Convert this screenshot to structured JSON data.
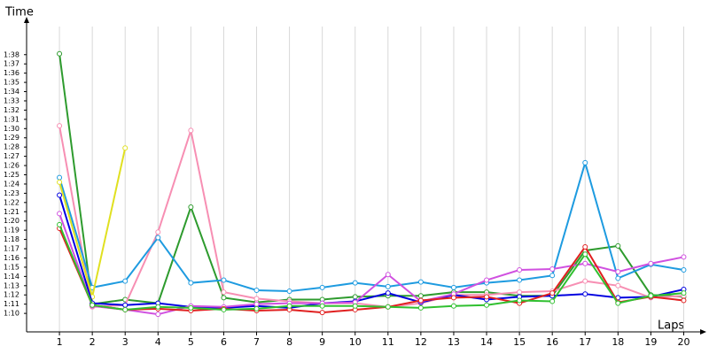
{
  "chart_data": {
    "type": "line",
    "x_label": "Laps",
    "y_label": "Time",
    "x": [
      1,
      2,
      3,
      4,
      5,
      6,
      7,
      8,
      9,
      10,
      11,
      12,
      13,
      14,
      15,
      16,
      17,
      18,
      19,
      20
    ],
    "xlim": [
      0,
      20.5
    ],
    "xticks": [
      1,
      2,
      3,
      4,
      5,
      6,
      7,
      8,
      9,
      10,
      11,
      12,
      13,
      14,
      15,
      16,
      17,
      18,
      19,
      20
    ],
    "ylim": [
      68,
      102
    ],
    "yticks": [
      {
        "value": 70,
        "label": "1:10"
      },
      {
        "value": 71,
        "label": "1:11"
      },
      {
        "value": 72,
        "label": "1:12"
      },
      {
        "value": 73,
        "label": "1:13"
      },
      {
        "value": 74,
        "label": "1:14"
      },
      {
        "value": 75,
        "label": "1:15"
      },
      {
        "value": 76,
        "label": "1:16"
      },
      {
        "value": 77,
        "label": "1:17"
      },
      {
        "value": 78,
        "label": "1:18"
      },
      {
        "value": 79,
        "label": "1:19"
      },
      {
        "value": 80,
        "label": "1:20"
      },
      {
        "value": 81,
        "label": "1:21"
      },
      {
        "value": 82,
        "label": "1:22"
      },
      {
        "value": 83,
        "label": "1:23"
      },
      {
        "value": 84,
        "label": "1:24"
      },
      {
        "value": 85,
        "label": "1:25"
      },
      {
        "value": 86,
        "label": "1:26"
      },
      {
        "value": 87,
        "label": "1:27"
      },
      {
        "value": 88,
        "label": "1:28"
      },
      {
        "value": 89,
        "label": "1:29"
      },
      {
        "value": 90,
        "label": "1:30"
      },
      {
        "value": 91,
        "label": "1:31"
      },
      {
        "value": 92,
        "label": "1:32"
      },
      {
        "value": 93,
        "label": "1:33"
      },
      {
        "value": 94,
        "label": "1:34"
      },
      {
        "value": 95,
        "label": "1:35"
      },
      {
        "value": 96,
        "label": "1:36"
      },
      {
        "value": 97,
        "label": "1:37"
      },
      {
        "value": 98,
        "label": "1:38"
      }
    ],
    "grid": true,
    "series": [
      {
        "color": "#2e9b2e",
        "values": [
          98.1,
          71,
          71.5,
          71.1,
          81.5,
          71.7,
          71.2,
          71.5,
          71.5,
          71.8,
          71.9,
          71.9,
          72.3,
          72.3,
          71.9,
          71.9,
          76.8,
          77.3,
          72,
          71.8
        ]
      },
      {
        "color": "#f78fb3",
        "values": [
          90.3,
          70.7,
          70.9,
          78.8,
          89.8,
          72.3,
          71.6,
          71.3,
          71.1,
          71.1,
          70.7,
          71.1,
          72,
          72,
          72.3,
          72.4,
          73.5,
          73,
          71.7,
          71.9
        ]
      },
      {
        "color": "#1e9be0",
        "values": [
          84.7,
          72.8,
          73.5,
          78.2,
          73.3,
          73.6,
          72.5,
          72.4,
          72.8,
          73.3,
          72.9,
          73.4,
          72.8,
          73.3,
          73.6,
          74.1,
          86.3,
          73.8,
          75.3,
          74.7
        ]
      },
      {
        "color": "#e0e020",
        "values": [
          84.2,
          71.8,
          87.9,
          null,
          null,
          null,
          null,
          null,
          null,
          null,
          null,
          null,
          null,
          null,
          null,
          null,
          null,
          null,
          null,
          null
        ]
      },
      {
        "color": "#0000e0",
        "values": [
          82.8,
          71.1,
          70.9,
          71.1,
          70.7,
          70.6,
          70.8,
          70.6,
          71.1,
          71.3,
          72.2,
          71.2,
          72,
          71.5,
          71.8,
          71.9,
          72.1,
          71.7,
          71.8,
          72.6
        ]
      },
      {
        "color": "#d050e0",
        "values": [
          80.8,
          70.8,
          70.4,
          69.9,
          70.8,
          70.7,
          71,
          71.1,
          71.1,
          71.2,
          74.2,
          71.3,
          72.1,
          73.6,
          74.7,
          74.8,
          75.4,
          74.5,
          75.4,
          76.1
        ]
      },
      {
        "color": "#e02020",
        "values": [
          79.2,
          70.9,
          70.4,
          70.5,
          70.3,
          70.5,
          70.3,
          70.4,
          70.1,
          70.4,
          70.7,
          71.4,
          71.7,
          71.8,
          71.1,
          72.2,
          77.2,
          71.2,
          71.8,
          71.4
        ]
      },
      {
        "color": "#30c030",
        "values": [
          79.6,
          70.9,
          70.4,
          70.7,
          70.6,
          70.4,
          70.5,
          70.8,
          70.8,
          70.8,
          70.7,
          70.6,
          70.8,
          70.9,
          71.4,
          71.3,
          76.4,
          71.1,
          71.9,
          72.2
        ]
      }
    ]
  }
}
